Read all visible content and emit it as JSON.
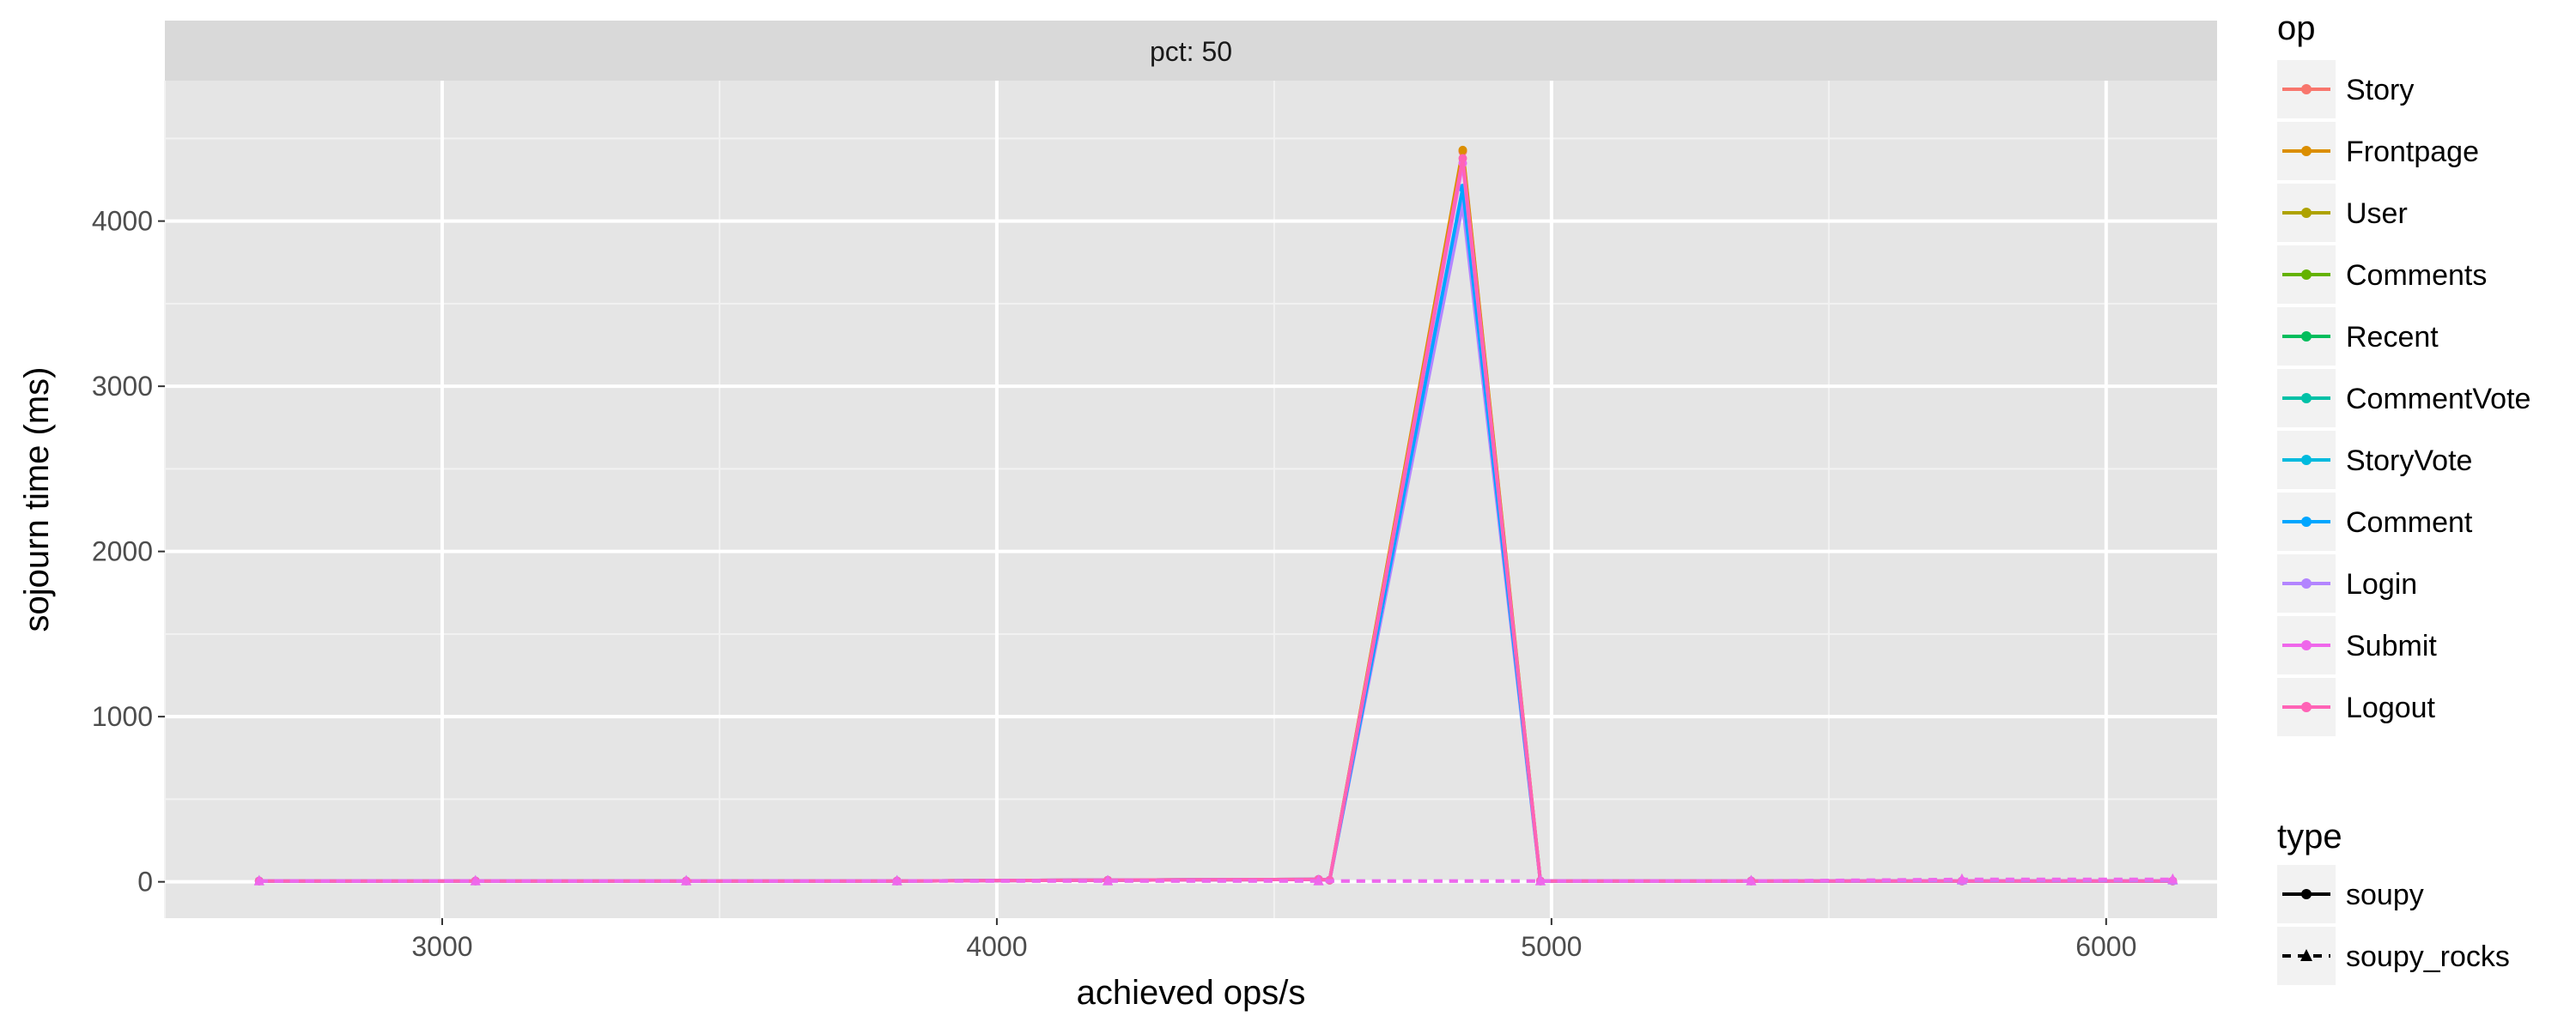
{
  "chart_data": {
    "type": "line",
    "facet_label": "pct: 50",
    "xlabel": "achieved ops/s",
    "ylabel": "sojourn time (ms)",
    "xlim": [
      2500,
      6200
    ],
    "ylim": [
      -220,
      4850
    ],
    "x_ticks": [
      3000,
      4000,
      5000,
      6000
    ],
    "y_ticks": [
      0,
      1000,
      2000,
      3000,
      4000
    ],
    "grid": true,
    "legend_position": "right",
    "legend_op_title": "op",
    "legend_type_title": "type",
    "op_legend": [
      {
        "name": "Story",
        "color": "#F8766D"
      },
      {
        "name": "Frontpage",
        "color": "#DB8E00"
      },
      {
        "name": "User",
        "color": "#AEA200"
      },
      {
        "name": "Comments",
        "color": "#64B200"
      },
      {
        "name": "Recent",
        "color": "#00BD5C"
      },
      {
        "name": "CommentVote",
        "color": "#00C1A7"
      },
      {
        "name": "StoryVote",
        "color": "#00BADE"
      },
      {
        "name": "Comment",
        "color": "#00A6FF"
      },
      {
        "name": "Login",
        "color": "#B385FF"
      },
      {
        "name": "Submit",
        "color": "#EF67EB"
      },
      {
        "name": "Logout",
        "color": "#FF63B6"
      }
    ],
    "type_legend": [
      {
        "name": "soupy",
        "line": "solid"
      },
      {
        "name": "soupy_rocks",
        "line": "dashed"
      }
    ],
    "series": [
      {
        "op": "Story",
        "type": "soupy",
        "color": "#F8766D",
        "x": [
          2670,
          3060,
          3440,
          3820,
          4200,
          4580,
          4600,
          4840,
          4980,
          5360,
          5740,
          6120
        ],
        "y": [
          5,
          5,
          5,
          5,
          10,
          15,
          10,
          4420,
          5,
          5,
          5,
          5
        ]
      },
      {
        "op": "Frontpage",
        "type": "soupy",
        "color": "#DB8E00",
        "x": [
          2670,
          3060,
          3440,
          3820,
          4200,
          4580,
          4600,
          4840,
          4980,
          5360,
          5740,
          6120
        ],
        "y": [
          5,
          5,
          5,
          5,
          10,
          15,
          10,
          4430,
          5,
          5,
          5,
          5
        ]
      },
      {
        "op": "Login",
        "type": "soupy",
        "color": "#B385FF",
        "x": [
          2670,
          3060,
          3440,
          3820,
          4200,
          4580,
          4600,
          4840,
          4980,
          5360,
          5740,
          6120
        ],
        "y": [
          5,
          5,
          5,
          5,
          10,
          15,
          10,
          4100,
          5,
          5,
          5,
          5
        ]
      },
      {
        "op": "Comment",
        "type": "soupy",
        "color": "#00A6FF",
        "x": [
          2670,
          3060,
          3440,
          3820,
          4200,
          4580,
          4600,
          4840,
          4980,
          5360,
          5740,
          6120
        ],
        "y": [
          5,
          5,
          5,
          5,
          10,
          15,
          10,
          4200,
          5,
          5,
          5,
          5
        ]
      },
      {
        "op": "Submit",
        "type": "soupy",
        "color": "#EF67EB",
        "x": [
          2670,
          3060,
          3440,
          3820,
          4200,
          4580,
          4600,
          4840,
          4980,
          5360,
          5740,
          6120
        ],
        "y": [
          5,
          5,
          5,
          5,
          10,
          15,
          10,
          4350,
          5,
          5,
          5,
          5
        ]
      },
      {
        "op": "Logout",
        "type": "soupy",
        "color": "#FF63B6",
        "x": [
          2670,
          3060,
          3440,
          3820,
          4200,
          4580,
          4600,
          4840,
          4980,
          5360,
          5740,
          6120
        ],
        "y": [
          5,
          5,
          5,
          5,
          10,
          15,
          10,
          4380,
          5,
          5,
          5,
          5
        ]
      },
      {
        "op": "Login",
        "type": "soupy_rocks",
        "color": "#B385FF",
        "x": [
          2670,
          3060,
          3440,
          3820,
          4200,
          4580,
          4980,
          5360,
          5740,
          6120
        ],
        "y": [
          5,
          5,
          5,
          5,
          5,
          5,
          5,
          5,
          10,
          10
        ]
      },
      {
        "op": "Submit",
        "type": "soupy_rocks",
        "color": "#EF67EB",
        "x": [
          2670,
          3060,
          3440,
          3820,
          4200,
          4580,
          4980,
          5360,
          5740,
          6120
        ],
        "y": [
          5,
          5,
          5,
          5,
          5,
          5,
          5,
          5,
          15,
          15
        ]
      }
    ]
  }
}
